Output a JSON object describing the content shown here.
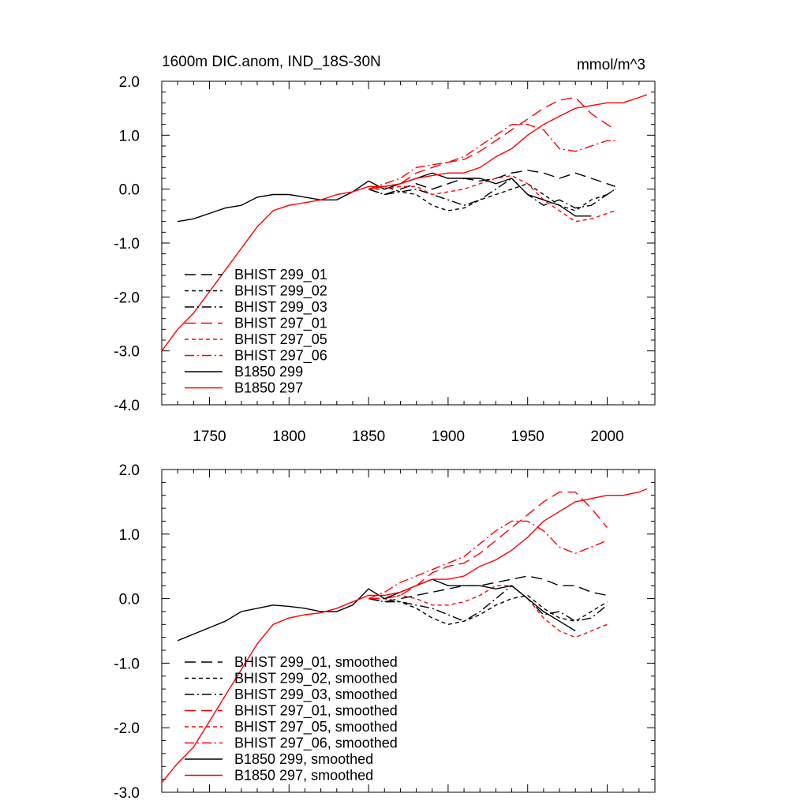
{
  "chart_data": [
    {
      "type": "line",
      "title": "1600m DIC.anom, IND_18S-30N",
      "units": "mmol/m^3",
      "xlabel": "",
      "ylabel": "",
      "xlim": [
        1720,
        2030
      ],
      "ylim": [
        -4.0,
        2.0
      ],
      "xticks": [
        1750,
        1800,
        1850,
        1900,
        1950,
        2000
      ],
      "xtick_labels": [
        "1750",
        "1800",
        "1850",
        "1900",
        "1950",
        "2000"
      ],
      "yticks": [
        -4.0,
        -3.0,
        -2.0,
        -1.0,
        0.0,
        1.0,
        2.0
      ],
      "ytick_labels": [
        "-4.0",
        "-3.0",
        "-2.0",
        "-1.0",
        "0.0",
        "1.0",
        "2.0"
      ],
      "legend_position": "bottom-left",
      "series": [
        {
          "name": "BHIST 299_01",
          "color": "#000000",
          "dash": "long-dash",
          "x": [
            1850,
            1860,
            1870,
            1880,
            1890,
            1900,
            1910,
            1920,
            1930,
            1940,
            1950,
            1960,
            1970,
            1980,
            1990,
            2000,
            2005
          ],
          "y": [
            0.0,
            -0.1,
            0.0,
            0.1,
            0.0,
            0.1,
            0.2,
            0.15,
            0.2,
            0.3,
            0.35,
            0.3,
            0.2,
            0.3,
            0.2,
            0.1,
            0.05
          ]
        },
        {
          "name": "BHIST 299_02",
          "color": "#000000",
          "dash": "short-dash",
          "x": [
            1850,
            1860,
            1870,
            1880,
            1890,
            1900,
            1910,
            1920,
            1930,
            1940,
            1950,
            1960,
            1970,
            1980,
            1990,
            2000,
            2005
          ],
          "y": [
            0.0,
            0.05,
            -0.05,
            -0.1,
            -0.3,
            -0.4,
            -0.35,
            -0.2,
            -0.1,
            0.0,
            0.1,
            -0.1,
            -0.3,
            -0.4,
            -0.2,
            -0.1,
            0.0
          ]
        },
        {
          "name": "BHIST 299_03",
          "color": "#000000",
          "dash": "dash-dot",
          "x": [
            1850,
            1860,
            1870,
            1880,
            1890,
            1900,
            1910,
            1920,
            1930,
            1940,
            1950,
            1960,
            1970,
            1980,
            1990,
            2000,
            2005
          ],
          "y": [
            0.0,
            -0.1,
            -0.05,
            0.0,
            -0.1,
            -0.2,
            -0.3,
            -0.2,
            0.0,
            0.2,
            -0.1,
            -0.3,
            -0.2,
            -0.35,
            -0.3,
            -0.1,
            0.0
          ]
        },
        {
          "name": "BHIST 297_01",
          "color": "#ff0000",
          "dash": "long-dash",
          "x": [
            1850,
            1860,
            1870,
            1880,
            1890,
            1900,
            1910,
            1920,
            1930,
            1940,
            1950,
            1960,
            1970,
            1980,
            1990,
            2000,
            2005
          ],
          "y": [
            0.0,
            0.05,
            0.1,
            0.3,
            0.4,
            0.5,
            0.55,
            0.7,
            0.9,
            1.1,
            1.3,
            1.5,
            1.65,
            1.7,
            1.4,
            1.2,
            1.1
          ]
        },
        {
          "name": "BHIST 297_05",
          "color": "#ff0000",
          "dash": "short-dash",
          "x": [
            1850,
            1860,
            1870,
            1880,
            1890,
            1900,
            1910,
            1920,
            1930,
            1940,
            1950,
            1960,
            1970,
            1980,
            1990,
            2000,
            2005
          ],
          "y": [
            0.0,
            0.0,
            0.05,
            0.05,
            -0.1,
            -0.05,
            0.0,
            0.1,
            0.2,
            0.25,
            0.1,
            -0.2,
            -0.4,
            -0.6,
            -0.55,
            -0.45,
            -0.4
          ]
        },
        {
          "name": "BHIST 297_06",
          "color": "#ff0000",
          "dash": "dash-dot",
          "x": [
            1850,
            1860,
            1870,
            1880,
            1890,
            1900,
            1910,
            1920,
            1930,
            1940,
            1950,
            1960,
            1970,
            1980,
            1990,
            2000,
            2005
          ],
          "y": [
            0.0,
            0.1,
            0.2,
            0.4,
            0.45,
            0.5,
            0.6,
            0.8,
            1.0,
            1.2,
            1.2,
            1.1,
            0.75,
            0.7,
            0.8,
            0.9,
            0.9
          ]
        },
        {
          "name": "B1850 299",
          "color": "#000000",
          "dash": "solid",
          "x": [
            1730,
            1740,
            1750,
            1760,
            1770,
            1780,
            1790,
            1800,
            1810,
            1820,
            1830,
            1840,
            1850,
            1860,
            1870,
            1880,
            1890,
            1900,
            1910,
            1920,
            1930,
            1940,
            1950,
            1960,
            1970,
            1980,
            1990
          ],
          "y": [
            -0.6,
            -0.55,
            -0.45,
            -0.35,
            -0.3,
            -0.15,
            -0.1,
            -0.1,
            -0.15,
            -0.2,
            -0.2,
            -0.05,
            0.15,
            0.0,
            0.1,
            0.2,
            0.3,
            0.2,
            0.2,
            0.2,
            0.1,
            0.2,
            -0.1,
            -0.2,
            -0.3,
            -0.5,
            -0.5
          ]
        },
        {
          "name": "B1850 297",
          "color": "#ff0000",
          "dash": "solid",
          "x": [
            1720,
            1730,
            1740,
            1750,
            1760,
            1770,
            1780,
            1790,
            1800,
            1810,
            1820,
            1830,
            1840,
            1850,
            1860,
            1870,
            1880,
            1890,
            1900,
            1910,
            1920,
            1930,
            1940,
            1950,
            1960,
            1970,
            1980,
            1990,
            2000,
            2010,
            2020,
            2025
          ],
          "y": [
            -3.0,
            -2.6,
            -2.3,
            -1.9,
            -1.5,
            -1.1,
            -0.7,
            -0.4,
            -0.3,
            -0.25,
            -0.2,
            -0.1,
            -0.05,
            0.05,
            0.05,
            0.1,
            0.2,
            0.25,
            0.3,
            0.3,
            0.4,
            0.6,
            0.75,
            1.0,
            1.2,
            1.35,
            1.5,
            1.55,
            1.6,
            1.6,
            1.7,
            1.75
          ]
        }
      ]
    },
    {
      "type": "line",
      "title": "",
      "xlabel": "",
      "ylabel": "",
      "xlim": [
        1720,
        2030
      ],
      "ylim": [
        -3.0,
        2.0
      ],
      "xticks": [
        1750,
        1800,
        1850,
        1900,
        1950,
        2000
      ],
      "xtick_labels": [],
      "yticks": [
        -3.0,
        -2.0,
        -1.0,
        0.0,
        1.0,
        2.0
      ],
      "ytick_labels": [
        "-3.0",
        "-2.0",
        "-1.0",
        "0.0",
        "1.0",
        "2.0"
      ],
      "legend_position": "bottom-left",
      "series": [
        {
          "name": "BHIST 299_01, smoothed",
          "color": "#000000",
          "dash": "long-dash",
          "x": [
            1850,
            1860,
            1870,
            1880,
            1890,
            1900,
            1910,
            1920,
            1930,
            1940,
            1950,
            1960,
            1970,
            1980,
            1990,
            2000
          ],
          "y": [
            0.0,
            -0.05,
            0.0,
            0.05,
            0.1,
            0.15,
            0.2,
            0.2,
            0.25,
            0.3,
            0.35,
            0.3,
            0.2,
            0.2,
            0.1,
            0.05
          ]
        },
        {
          "name": "BHIST 299_02, smoothed",
          "color": "#000000",
          "dash": "short-dash",
          "x": [
            1850,
            1860,
            1870,
            1880,
            1890,
            1900,
            1910,
            1920,
            1930,
            1940,
            1950,
            1960,
            1970,
            1980,
            1990,
            2000
          ],
          "y": [
            0.0,
            0.0,
            -0.05,
            -0.15,
            -0.3,
            -0.4,
            -0.35,
            -0.25,
            -0.1,
            0.0,
            0.05,
            -0.15,
            -0.3,
            -0.35,
            -0.2,
            -0.05
          ]
        },
        {
          "name": "BHIST 299_03, smoothed",
          "color": "#000000",
          "dash": "dash-dot",
          "x": [
            1850,
            1860,
            1870,
            1880,
            1890,
            1900,
            1910,
            1920,
            1930,
            1940,
            1950,
            1960,
            1970,
            1980,
            1990,
            2000
          ],
          "y": [
            0.0,
            -0.05,
            -0.05,
            -0.1,
            -0.15,
            -0.25,
            -0.35,
            -0.2,
            0.0,
            0.2,
            0.0,
            -0.25,
            -0.2,
            -0.35,
            -0.3,
            -0.1
          ]
        },
        {
          "name": "BHIST 297_01, smoothed",
          "color": "#ff0000",
          "dash": "long-dash",
          "x": [
            1850,
            1860,
            1870,
            1880,
            1890,
            1900,
            1910,
            1920,
            1930,
            1940,
            1950,
            1960,
            1970,
            1980,
            1990,
            2000
          ],
          "y": [
            0.0,
            0.0,
            0.05,
            0.2,
            0.4,
            0.5,
            0.55,
            0.7,
            0.9,
            1.1,
            1.3,
            1.5,
            1.65,
            1.65,
            1.4,
            1.1
          ]
        },
        {
          "name": "BHIST 297_05, smoothed",
          "color": "#ff0000",
          "dash": "short-dash",
          "x": [
            1850,
            1860,
            1870,
            1880,
            1890,
            1900,
            1910,
            1920,
            1930,
            1940,
            1950,
            1960,
            1970,
            1980,
            1990,
            2000
          ],
          "y": [
            0.0,
            0.0,
            0.05,
            0.0,
            -0.1,
            -0.1,
            -0.05,
            0.05,
            0.2,
            0.2,
            0.0,
            -0.3,
            -0.5,
            -0.6,
            -0.5,
            -0.4
          ]
        },
        {
          "name": "BHIST 297_06, smoothed",
          "color": "#ff0000",
          "dash": "dash-dot",
          "x": [
            1850,
            1860,
            1870,
            1880,
            1890,
            1900,
            1910,
            1920,
            1930,
            1940,
            1950,
            1960,
            1970,
            1980,
            1990,
            2000
          ],
          "y": [
            0.0,
            0.1,
            0.25,
            0.35,
            0.45,
            0.55,
            0.65,
            0.85,
            1.05,
            1.2,
            1.2,
            1.05,
            0.8,
            0.7,
            0.8,
            0.9
          ]
        },
        {
          "name": "B1850 299, smoothed",
          "color": "#000000",
          "dash": "solid",
          "x": [
            1730,
            1740,
            1750,
            1760,
            1770,
            1780,
            1790,
            1800,
            1810,
            1820,
            1830,
            1840,
            1850,
            1860,
            1870,
            1880,
            1890,
            1900,
            1910,
            1920,
            1930,
            1940,
            1950,
            1960,
            1970,
            1980
          ],
          "y": [
            -0.65,
            -0.55,
            -0.45,
            -0.35,
            -0.2,
            -0.15,
            -0.1,
            -0.12,
            -0.15,
            -0.2,
            -0.2,
            -0.1,
            0.15,
            0.0,
            0.1,
            0.2,
            0.3,
            0.2,
            0.2,
            0.2,
            0.15,
            0.2,
            0.0,
            -0.2,
            -0.35,
            -0.5
          ]
        },
        {
          "name": "B1850 297, smoothed",
          "color": "#ff0000",
          "dash": "solid",
          "x": [
            1720,
            1730,
            1740,
            1750,
            1760,
            1770,
            1780,
            1790,
            1800,
            1810,
            1820,
            1830,
            1840,
            1850,
            1860,
            1870,
            1880,
            1890,
            1900,
            1910,
            1920,
            1930,
            1940,
            1950,
            1960,
            1970,
            1980,
            1990,
            2000,
            2010,
            2020,
            2025
          ],
          "y": [
            -2.85,
            -2.55,
            -2.3,
            -1.9,
            -1.5,
            -1.1,
            -0.7,
            -0.4,
            -0.3,
            -0.25,
            -0.22,
            -0.15,
            -0.05,
            0.05,
            0.05,
            0.1,
            0.2,
            0.3,
            0.3,
            0.35,
            0.5,
            0.6,
            0.75,
            0.95,
            1.2,
            1.35,
            1.5,
            1.55,
            1.6,
            1.6,
            1.65,
            1.7
          ]
        }
      ]
    }
  ]
}
